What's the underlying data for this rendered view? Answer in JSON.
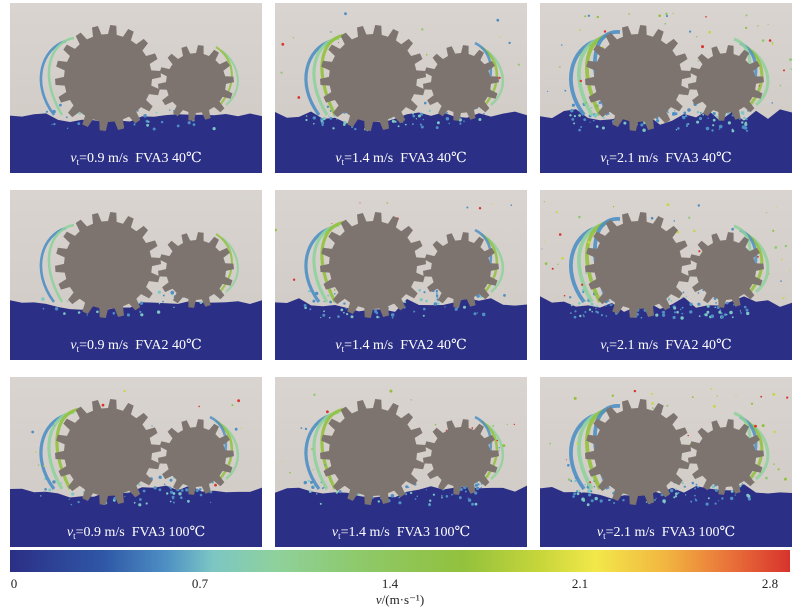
{
  "panels": [
    {
      "v": "0.9 m/s",
      "oil": "FVA3",
      "temp": "40℃",
      "intensity": 1
    },
    {
      "v": "1.4 m/s",
      "oil": "FVA3",
      "temp": "40℃",
      "intensity": 2
    },
    {
      "v": "2.1 m/s",
      "oil": "FVA3",
      "temp": "40℃",
      "intensity": 3
    },
    {
      "v": "0.9 m/s",
      "oil": "FVA2",
      "temp": "40℃",
      "intensity": 1
    },
    {
      "v": "1.4 m/s",
      "oil": "FVA2",
      "temp": "40℃",
      "intensity": 2
    },
    {
      "v": "2.1 m/s",
      "oil": "FVA2",
      "temp": "40℃",
      "intensity": 3
    },
    {
      "v": "0.9 m/s",
      "oil": "FVA3",
      "temp": "100℃",
      "intensity": 2
    },
    {
      "v": "1.4 m/s",
      "oil": "FVA3",
      "temp": "100℃",
      "intensity": 2
    },
    {
      "v": "2.1 m/s",
      "oil": "FVA3",
      "temp": "100℃",
      "intensity": 3
    }
  ],
  "caption_symbol": "v",
  "caption_subscript": "t",
  "colorbar": {
    "ticks": [
      "0",
      "0.7",
      "1.4",
      "2.1",
      "2.8"
    ],
    "tick_values": [
      0,
      0.7,
      1.4,
      2.1,
      2.8
    ],
    "range": [
      0,
      2.8
    ],
    "label_symbol": "v",
    "label_unit": "/(m·s⁻¹)",
    "colors": [
      "#2b2f86",
      "#4e8fc4",
      "#8ec96a",
      "#f2e84a",
      "#d8332c"
    ]
  }
}
